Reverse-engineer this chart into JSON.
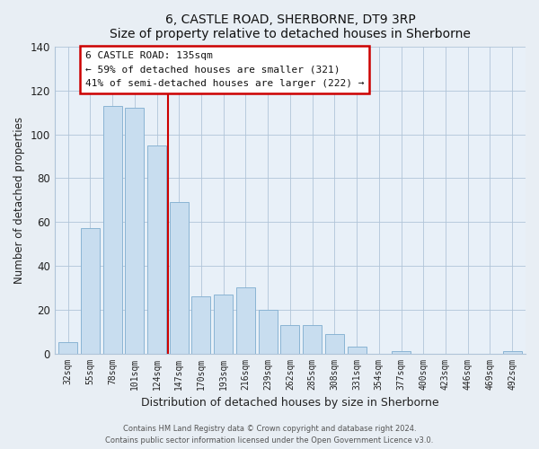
{
  "title": "6, CASTLE ROAD, SHERBORNE, DT9 3RP",
  "subtitle": "Size of property relative to detached houses in Sherborne",
  "xlabel": "Distribution of detached houses by size in Sherborne",
  "ylabel": "Number of detached properties",
  "bar_labels": [
    "32sqm",
    "55sqm",
    "78sqm",
    "101sqm",
    "124sqm",
    "147sqm",
    "170sqm",
    "193sqm",
    "216sqm",
    "239sqm",
    "262sqm",
    "285sqm",
    "308sqm",
    "331sqm",
    "354sqm",
    "377sqm",
    "400sqm",
    "423sqm",
    "446sqm",
    "469sqm",
    "492sqm"
  ],
  "bar_values": [
    5,
    57,
    113,
    112,
    95,
    69,
    26,
    27,
    30,
    20,
    13,
    13,
    9,
    3,
    0,
    1,
    0,
    0,
    0,
    0,
    1
  ],
  "bar_color": "#c8ddef",
  "bar_edge_color": "#8ab4d4",
  "vline_x": 4.5,
  "vline_color": "#cc0000",
  "ylim": [
    0,
    140
  ],
  "yticks": [
    0,
    20,
    40,
    60,
    80,
    100,
    120,
    140
  ],
  "annotation_title": "6 CASTLE ROAD: 135sqm",
  "annotation_line1": "← 59% of detached houses are smaller (321)",
  "annotation_line2": "41% of semi-detached houses are larger (222) →",
  "footer_line1": "Contains HM Land Registry data © Crown copyright and database right 2024.",
  "footer_line2": "Contains public sector information licensed under the Open Government Licence v3.0.",
  "background_color": "#e8eef4",
  "plot_bg_color": "#e8f0f8"
}
